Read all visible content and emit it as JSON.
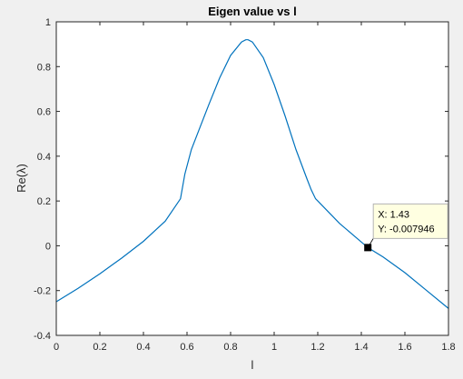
{
  "chart_data": {
    "type": "line",
    "title": "Eigen value vs l",
    "xlabel": "l",
    "ylabel": "Re(λ)",
    "xlim": [
      0,
      1.8
    ],
    "ylim": [
      -0.4,
      1
    ],
    "xticks": [
      0,
      0.2,
      0.4,
      0.6,
      0.8,
      1,
      1.2,
      1.4,
      1.6,
      1.8
    ],
    "yticks": [
      -0.4,
      -0.2,
      0,
      0.2,
      0.4,
      0.6,
      0.8,
      1
    ],
    "grid": false,
    "series": [
      {
        "color": "#0072bd",
        "x": [
          0,
          0.1,
          0.2,
          0.3,
          0.4,
          0.5,
          0.57,
          0.59,
          0.62,
          0.66,
          0.7,
          0.75,
          0.8,
          0.85,
          0.87,
          0.88,
          0.9,
          0.95,
          1.0,
          1.05,
          1.1,
          1.15,
          1.17,
          1.19,
          1.2,
          1.3,
          1.43,
          1.5,
          1.6,
          1.7,
          1.8
        ],
        "y": [
          -0.25,
          -0.19,
          -0.125,
          -0.055,
          0.02,
          0.11,
          0.21,
          0.32,
          0.43,
          0.53,
          0.63,
          0.75,
          0.85,
          0.91,
          0.92,
          0.92,
          0.91,
          0.84,
          0.72,
          0.58,
          0.43,
          0.3,
          0.25,
          0.21,
          0.2,
          0.1,
          -0.007946,
          -0.05,
          -0.12,
          -0.2,
          -0.28
        ]
      }
    ],
    "datatip": {
      "x": 1.43,
      "y": -0.007946,
      "x_text": "X: 1.43",
      "y_text": "Y: -0.007946"
    }
  }
}
